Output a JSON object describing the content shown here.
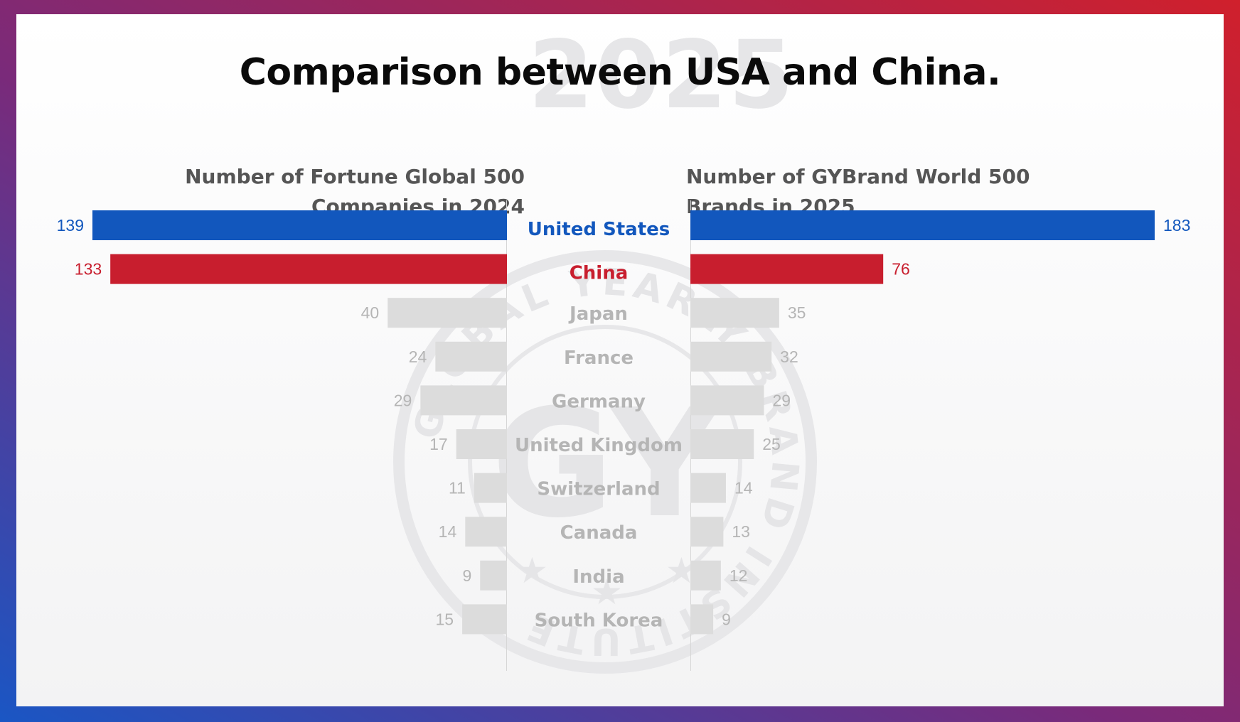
{
  "title": "Comparison between USA and China.",
  "watermark": {
    "year": "2025",
    "seal_text": "GLOBAL YEARLY BRAND INSTITUTE",
    "seal_initials": "GY"
  },
  "colors": {
    "usa": "#1257bd",
    "china": "#c81e2e",
    "other_bar": "#dcdcdc",
    "other_text": "#b5b5b5"
  },
  "chart_data": [
    {
      "type": "bar",
      "orientation": "horizontal",
      "direction": "leftward",
      "title": "Number of Fortune Global 500 Companies in 2024",
      "title_lines": [
        "Number of Fortune Global 500",
        "Companies in 2024"
      ],
      "categories": [
        "United States",
        "China",
        "Japan",
        "France",
        "Germany",
        "United Kingdom",
        "Switzerland",
        "Canada",
        "India",
        "South Korea"
      ],
      "values": [
        139,
        133,
        40,
        24,
        29,
        17,
        11,
        14,
        9,
        15
      ],
      "value_labels": [
        "139",
        "133",
        "40",
        "24",
        "29",
        "17",
        "11",
        "14",
        "9",
        "15"
      ],
      "xlim": [
        0,
        139
      ]
    },
    {
      "type": "bar",
      "orientation": "horizontal",
      "direction": "rightward",
      "title": "Number of GYBrand World 500 Brands in 2025",
      "title_lines": [
        "Number of GYBrand World 500",
        "Brands in 2025"
      ],
      "categories": [
        "United States",
        "China",
        "Japan",
        "France",
        "Germany",
        "United Kingdom",
        "Switzerland",
        "Canada",
        "India",
        "South Korea"
      ],
      "values": [
        183,
        76,
        35,
        32,
        29,
        25,
        14,
        13,
        12,
        9
      ],
      "value_labels": [
        "183",
        "76",
        "35",
        "32",
        "29",
        "25",
        "14",
        "13",
        "12",
        "9"
      ],
      "xlim": [
        0,
        183
      ]
    }
  ]
}
